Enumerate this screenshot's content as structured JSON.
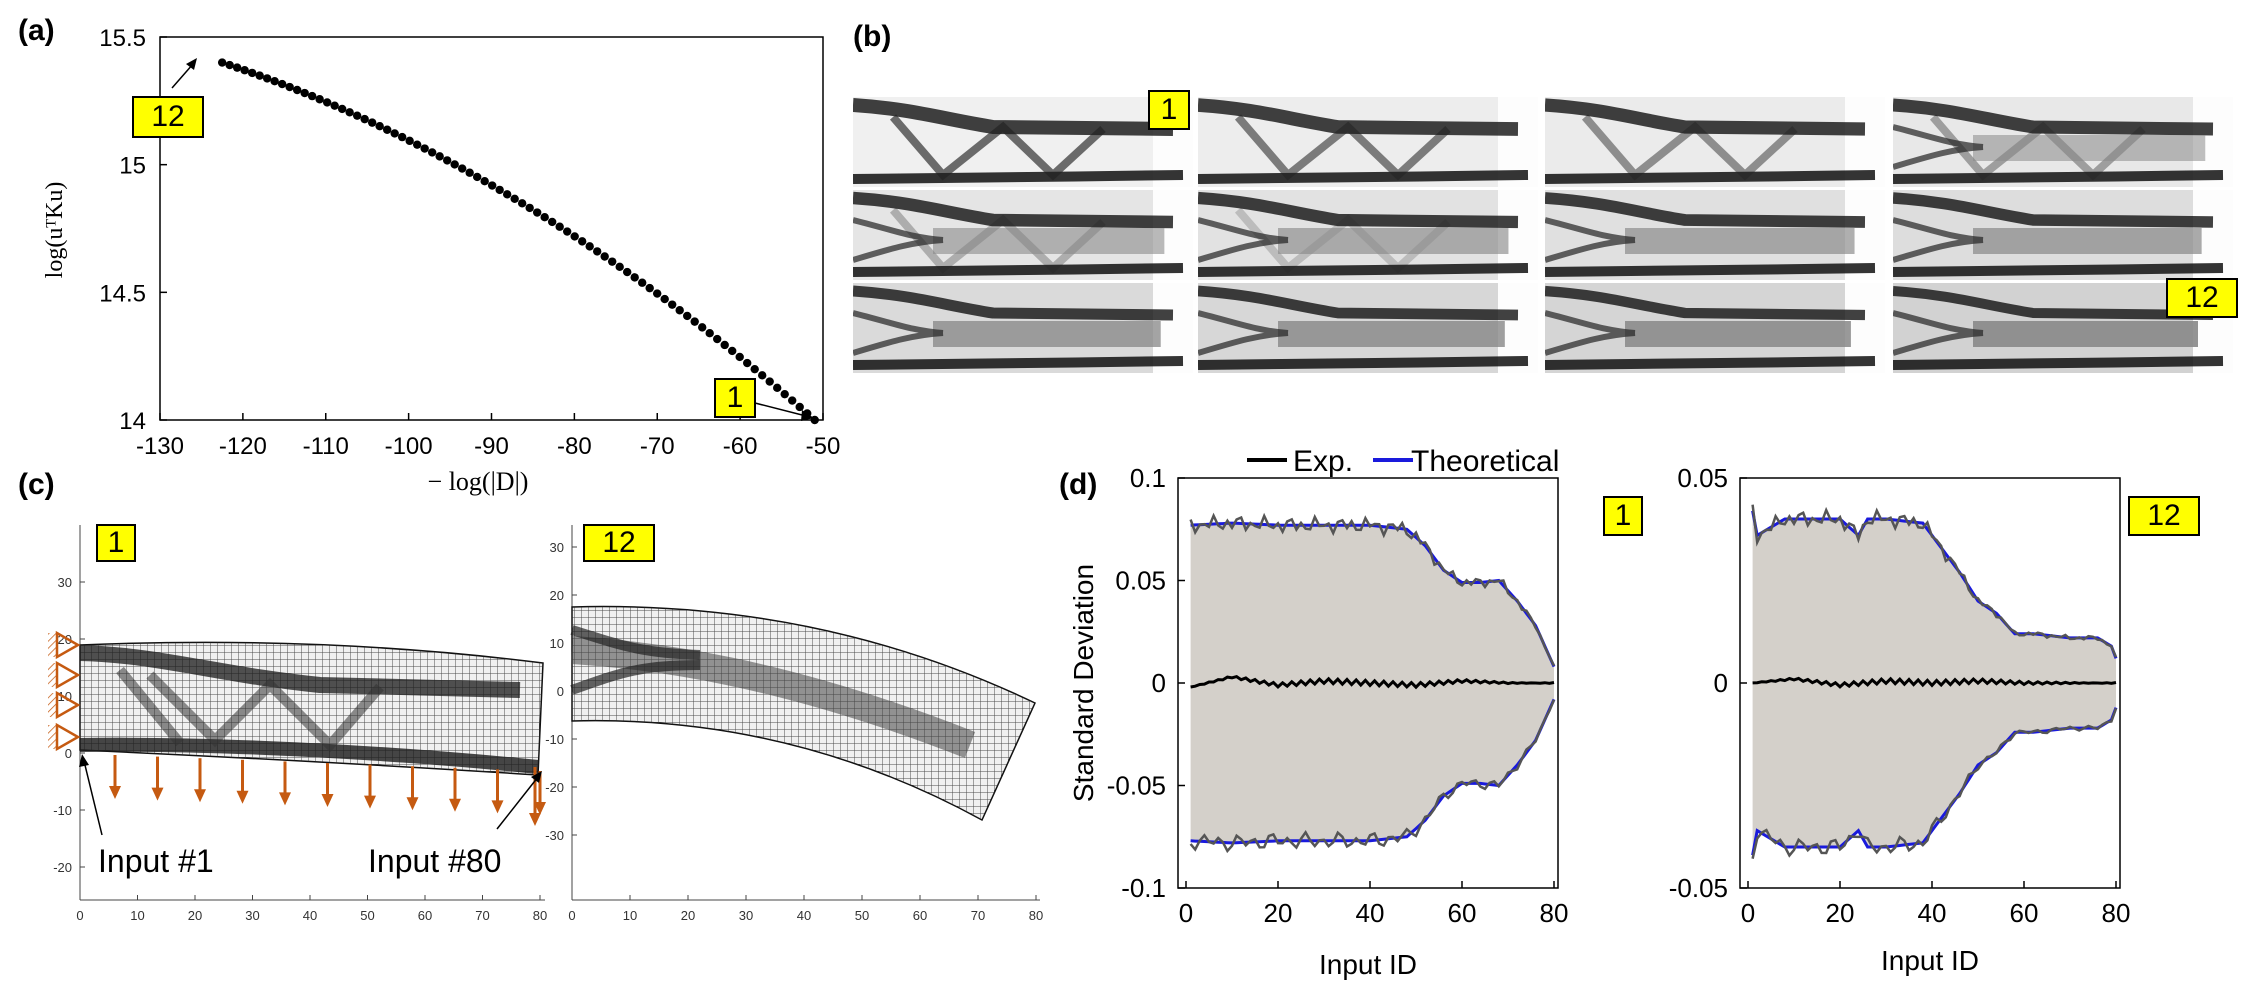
{
  "panels": {
    "a": "(a)",
    "b": "(b)",
    "c": "(c)",
    "d": "(d)"
  },
  "panel_a": {
    "ylabel": "log(uᵀKu)",
    "xlabel": "− log(|D|)",
    "xticks": [
      "-130",
      "-120",
      "-110",
      "-100",
      "-90",
      "-80",
      "-70",
      "-60",
      "-50"
    ],
    "yticks": [
      "14",
      "14.5",
      "15",
      "15.5"
    ],
    "tag_start": "12",
    "tag_end": "1"
  },
  "panel_b": {
    "tag_first": "1",
    "tag_last": "12",
    "rows": 3,
    "cols": 4
  },
  "panel_c": {
    "tag_left": "1",
    "tag_right": "12",
    "input_first": "Input #1",
    "input_last": "Input #80",
    "left_yticks": [
      "30",
      "20",
      "10",
      "0",
      "-10",
      "-20"
    ],
    "left_xticks": [
      "0",
      "10",
      "20",
      "30",
      "40",
      "50",
      "60",
      "70",
      "80"
    ],
    "right_yticks": [
      "30",
      "20",
      "10",
      "0",
      "-10",
      "-20",
      "-30"
    ],
    "right_xticks": [
      "0",
      "10",
      "20",
      "30",
      "40",
      "50",
      "60",
      "70",
      "80"
    ],
    "load_color": "#c55a11"
  },
  "panel_d": {
    "legend_exp": "Exp.",
    "legend_theo": "Theoretical",
    "ylabel": "Standard Deviation",
    "xlabel": "Input ID",
    "left_tag": "1",
    "right_tag": "12",
    "left_yticks": [
      "0.1",
      "0.05",
      "0",
      "-0.05",
      "-0.1"
    ],
    "right_yticks": [
      "0.05",
      "0",
      "-0.05"
    ],
    "xticks": [
      "0",
      "20",
      "40",
      "60",
      "80"
    ],
    "fill_color": "#d4d0ca",
    "theo_color": "#1a1adc",
    "exp_color": "#555555"
  },
  "chart_data": [
    {
      "type": "scatter",
      "title": "",
      "xlabel": "− log(|D|)",
      "ylabel": "log(uᵀKu)",
      "xlim": [
        -130,
        -50
      ],
      "ylim": [
        14,
        15.5
      ],
      "grid": false,
      "x_start": -122.5,
      "y_start": 15.4,
      "x_end": -51,
      "y_end": 14.0,
      "n_points": 80
    },
    {
      "type": "area",
      "title": "",
      "xlabel": "Input ID",
      "ylabel": "Standard Deviation",
      "xlim": [
        0,
        80
      ],
      "ylim": [
        -0.1,
        0.1
      ],
      "series": [
        {
          "name": "Theoretical",
          "x": [
            1,
            10,
            20,
            30,
            40,
            48,
            52,
            56,
            60,
            64,
            68,
            72,
            76,
            80
          ],
          "values": [
            0.077,
            0.078,
            0.077,
            0.077,
            0.077,
            0.075,
            0.067,
            0.055,
            0.049,
            0.049,
            0.05,
            0.04,
            0.028,
            0.008
          ]
        },
        {
          "name": "Exp.",
          "x": [
            1,
            10,
            20,
            30,
            40,
            50,
            60,
            70,
            80
          ],
          "values": [
            -0.002,
            0.003,
            -0.001,
            0.001,
            0.0,
            -0.001,
            0.001,
            0.0,
            0.0
          ]
        }
      ]
    },
    {
      "type": "area",
      "title": "",
      "xlabel": "Input ID",
      "ylabel": "",
      "xlim": [
        0,
        80
      ],
      "ylim": [
        -0.05,
        0.05
      ],
      "series": [
        {
          "name": "Theoretical",
          "x": [
            1,
            2,
            8,
            10,
            20,
            24,
            26,
            30,
            38,
            42,
            46,
            50,
            54,
            58,
            62,
            70,
            76,
            79,
            80
          ],
          "values": [
            0.042,
            0.036,
            0.04,
            0.04,
            0.04,
            0.036,
            0.04,
            0.04,
            0.039,
            0.033,
            0.027,
            0.02,
            0.017,
            0.012,
            0.012,
            0.011,
            0.011,
            0.009,
            0.006
          ]
        },
        {
          "name": "Exp.",
          "x": [
            1,
            10,
            20,
            30,
            40,
            50,
            60,
            70,
            80
          ],
          "values": [
            0.0,
            0.002,
            -0.001,
            0.001,
            0.0,
            0.001,
            0.0,
            0.0,
            0.0
          ]
        }
      ]
    }
  ]
}
